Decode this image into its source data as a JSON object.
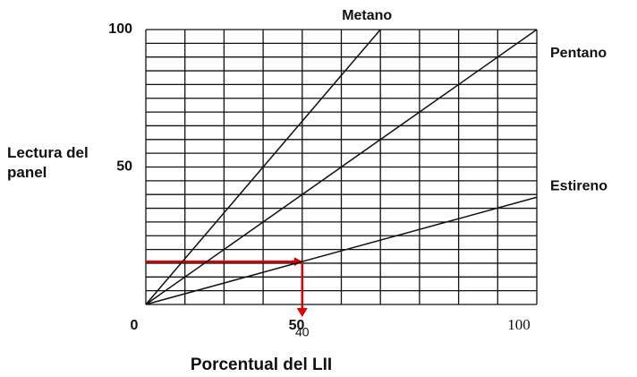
{
  "chart_data": {
    "type": "line",
    "x_label": "Porcentual del LII",
    "y_label": "Lectura del panel",
    "xlim": [
      0,
      100
    ],
    "ylim": [
      0,
      100
    ],
    "xticks": [
      0,
      50,
      100
    ],
    "yticks": [
      50,
      100
    ],
    "xgrid": [
      0,
      10,
      20,
      30,
      40,
      50,
      60,
      70,
      80,
      90,
      100
    ],
    "ygrid": [
      0,
      5,
      10,
      15,
      20,
      25,
      30,
      35,
      40,
      45,
      50,
      55,
      60,
      65,
      70,
      75,
      80,
      85,
      90,
      95,
      100
    ],
    "series": [
      {
        "name": "Metano",
        "color": "#111111",
        "x": [
          0,
          60
        ],
        "values": [
          0,
          100
        ]
      },
      {
        "name": "Pentano",
        "color": "#111111",
        "x": [
          0,
          100
        ],
        "values": [
          0,
          100
        ]
      },
      {
        "name": "Estireno",
        "color": "#111111",
        "x": [
          0,
          100
        ],
        "values": [
          0,
          39
        ]
      }
    ],
    "annotation": {
      "x": 40,
      "y": 15.6,
      "color": "#e00000"
    }
  }
}
